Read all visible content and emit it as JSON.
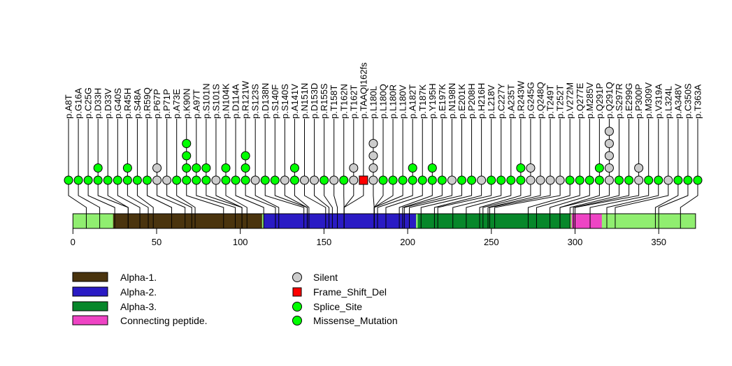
{
  "chart_data": {
    "type": "lollipop",
    "title": "",
    "xlabel": "",
    "ylabel": "",
    "xlim": [
      0,
      372
    ],
    "x_ticks": [
      0,
      50,
      100,
      150,
      200,
      250,
      300,
      350
    ],
    "colors": {
      "Silent": "#cccccc",
      "Frame_Shift_Del": "#ff0000",
      "Splice_Site": "#00ff00",
      "Missense_Mutation": "#00ff00",
      "background_domain": "#90ee70",
      "Alpha-1.": "#4a340e",
      "Alpha-2.": "#2a1bc4",
      "Alpha-3.": "#07872a",
      "Connecting peptide.": "#ee44c4"
    },
    "domains": [
      {
        "name": "Alpha-1.",
        "start": 24,
        "end": 113
      },
      {
        "name": "Alpha-2.",
        "start": 114,
        "end": 205
      },
      {
        "name": "Alpha-3.",
        "start": 206,
        "end": 297
      },
      {
        "name": "Connecting peptide.",
        "start": 298,
        "end": 316
      }
    ],
    "mutations": [
      {
        "label": "p.A8T",
        "pos": 8,
        "dots": [
          "Missense_Mutation"
        ]
      },
      {
        "label": "p.G16A",
        "pos": 16,
        "dots": [
          "Missense_Mutation"
        ]
      },
      {
        "label": "p.C25G",
        "pos": 25,
        "dots": [
          "Missense_Mutation"
        ]
      },
      {
        "label": "p.D33H",
        "pos": 33,
        "dots": [
          "Missense_Mutation",
          "Missense_Mutation"
        ]
      },
      {
        "label": "p.D33V",
        "pos": 33,
        "dots": [
          "Missense_Mutation"
        ]
      },
      {
        "label": "p.G40S",
        "pos": 40,
        "dots": [
          "Missense_Mutation"
        ]
      },
      {
        "label": "p.R45H",
        "pos": 45,
        "dots": [
          "Missense_Mutation",
          "Missense_Mutation"
        ]
      },
      {
        "label": "p.S48A",
        "pos": 48,
        "dots": [
          "Missense_Mutation"
        ]
      },
      {
        "label": "p.R59Q",
        "pos": 59,
        "dots": [
          "Missense_Mutation"
        ]
      },
      {
        "label": "p.P67P",
        "pos": 67,
        "dots": [
          "Silent",
          "Silent"
        ]
      },
      {
        "label": "p.P71P",
        "pos": 71,
        "dots": [
          "Silent"
        ]
      },
      {
        "label": "p.A73E",
        "pos": 73,
        "dots": [
          "Missense_Mutation"
        ]
      },
      {
        "label": "p.K90N",
        "pos": 90,
        "dots": [
          "Missense_Mutation",
          "Missense_Mutation",
          "Missense_Mutation",
          "Missense_Mutation"
        ]
      },
      {
        "label": "p.A97T",
        "pos": 97,
        "dots": [
          "Missense_Mutation",
          "Missense_Mutation"
        ]
      },
      {
        "label": "p.S101N",
        "pos": 101,
        "dots": [
          "Missense_Mutation",
          "Missense_Mutation"
        ]
      },
      {
        "label": "p.S101S",
        "pos": 101,
        "dots": [
          "Silent"
        ]
      },
      {
        "label": "p.N104K",
        "pos": 104,
        "dots": [
          "Missense_Mutation",
          "Missense_Mutation"
        ]
      },
      {
        "label": "p.D114A",
        "pos": 114,
        "dots": [
          "Missense_Mutation"
        ]
      },
      {
        "label": "p.R121W",
        "pos": 121,
        "dots": [
          "Missense_Mutation",
          "Missense_Mutation",
          "Missense_Mutation"
        ]
      },
      {
        "label": "p.S123S",
        "pos": 123,
        "dots": [
          "Silent"
        ]
      },
      {
        "label": "p.D138N",
        "pos": 138,
        "dots": [
          "Missense_Mutation"
        ]
      },
      {
        "label": "p.S140F",
        "pos": 140,
        "dots": [
          "Missense_Mutation"
        ]
      },
      {
        "label": "p.S140S",
        "pos": 140,
        "dots": [
          "Silent"
        ]
      },
      {
        "label": "p.A141V",
        "pos": 141,
        "dots": [
          "Missense_Mutation",
          "Missense_Mutation"
        ]
      },
      {
        "label": "p.N151N",
        "pos": 151,
        "dots": [
          "Silent"
        ]
      },
      {
        "label": "p.D153D",
        "pos": 153,
        "dots": [
          "Silent"
        ]
      },
      {
        "label": "p.R155S",
        "pos": 155,
        "dots": [
          "Missense_Mutation"
        ]
      },
      {
        "label": "p.T158T",
        "pos": 158,
        "dots": [
          "Silent"
        ]
      },
      {
        "label": "p.T162N",
        "pos": 162,
        "dots": [
          "Missense_Mutation"
        ]
      },
      {
        "label": "p.T162T",
        "pos": 162,
        "dots": [
          "Silent",
          "Silent"
        ]
      },
      {
        "label": "p.TAAQI162fs",
        "pos": 162,
        "dots": [
          "Frame_Shift_Del"
        ]
      },
      {
        "label": "p.L180L",
        "pos": 180,
        "dots": [
          "Silent",
          "Silent",
          "Silent",
          "Silent"
        ]
      },
      {
        "label": "p.L180Q",
        "pos": 180,
        "dots": [
          "Missense_Mutation"
        ]
      },
      {
        "label": "p.L180R",
        "pos": 180,
        "dots": [
          "Missense_Mutation"
        ]
      },
      {
        "label": "p.L180V",
        "pos": 180,
        "dots": [
          "Missense_Mutation"
        ]
      },
      {
        "label": "p.A182T",
        "pos": 182,
        "dots": [
          "Missense_Mutation",
          "Missense_Mutation"
        ]
      },
      {
        "label": "p.T187K",
        "pos": 187,
        "dots": [
          "Missense_Mutation"
        ]
      },
      {
        "label": "p.Y195H",
        "pos": 195,
        "dots": [
          "Missense_Mutation",
          "Missense_Mutation"
        ]
      },
      {
        "label": "p.E197K",
        "pos": 197,
        "dots": [
          "Missense_Mutation"
        ]
      },
      {
        "label": "p.N198N",
        "pos": 198,
        "dots": [
          "Silent"
        ]
      },
      {
        "label": "p.E201K",
        "pos": 201,
        "dots": [
          "Missense_Mutation"
        ]
      },
      {
        "label": "p.P208H",
        "pos": 208,
        "dots": [
          "Missense_Mutation"
        ]
      },
      {
        "label": "p.H216H",
        "pos": 216,
        "dots": [
          "Silent"
        ]
      },
      {
        "label": "p.L218V",
        "pos": 218,
        "dots": [
          "Missense_Mutation"
        ]
      },
      {
        "label": "p.C227Y",
        "pos": 227,
        "dots": [
          "Missense_Mutation"
        ]
      },
      {
        "label": "p.A235T",
        "pos": 235,
        "dots": [
          "Missense_Mutation"
        ]
      },
      {
        "label": "p.R243W",
        "pos": 243,
        "dots": [
          "Missense_Mutation",
          "Missense_Mutation"
        ]
      },
      {
        "label": "p.G245G",
        "pos": 245,
        "dots": [
          "Silent",
          "Silent"
        ]
      },
      {
        "label": "p.Q248Q",
        "pos": 248,
        "dots": [
          "Silent"
        ]
      },
      {
        "label": "p.T249T",
        "pos": 249,
        "dots": [
          "Silent"
        ]
      },
      {
        "label": "p.T252T",
        "pos": 252,
        "dots": [
          "Silent"
        ]
      },
      {
        "label": "p.V272M",
        "pos": 272,
        "dots": [
          "Missense_Mutation"
        ]
      },
      {
        "label": "p.Q277E",
        "pos": 277,
        "dots": [
          "Missense_Mutation"
        ]
      },
      {
        "label": "p.M285V",
        "pos": 285,
        "dots": [
          "Missense_Mutation"
        ]
      },
      {
        "label": "p.Q291P",
        "pos": 291,
        "dots": [
          "Missense_Mutation",
          "Missense_Mutation"
        ]
      },
      {
        "label": "p.Q291Q",
        "pos": 291,
        "dots": [
          "Silent",
          "Silent",
          "Silent",
          "Silent",
          "Silent"
        ]
      },
      {
        "label": "p.S297R",
        "pos": 297,
        "dots": [
          "Missense_Mutation"
        ]
      },
      {
        "label": "p.E299G",
        "pos": 299,
        "dots": [
          "Missense_Mutation"
        ]
      },
      {
        "label": "p.P300P",
        "pos": 300,
        "dots": [
          "Silent",
          "Silent"
        ]
      },
      {
        "label": "p.M309V",
        "pos": 309,
        "dots": [
          "Missense_Mutation"
        ]
      },
      {
        "label": "p.V319A",
        "pos": 319,
        "dots": [
          "Missense_Mutation"
        ]
      },
      {
        "label": "p.L324L",
        "pos": 324,
        "dots": [
          "Silent"
        ]
      },
      {
        "label": "p.A348V",
        "pos": 348,
        "dots": [
          "Missense_Mutation"
        ]
      },
      {
        "label": "p.C350S",
        "pos": 350,
        "dots": [
          "Missense_Mutation"
        ]
      },
      {
        "label": "p.T363A",
        "pos": 363,
        "dots": [
          "Missense_Mutation"
        ]
      }
    ],
    "legend_domains": [
      "Alpha-1.",
      "Alpha-2.",
      "Alpha-3.",
      "Connecting peptide."
    ],
    "legend_mutations": [
      "Silent",
      "Frame_Shift_Del",
      "Splice_Site",
      "Missense_Mutation"
    ]
  }
}
